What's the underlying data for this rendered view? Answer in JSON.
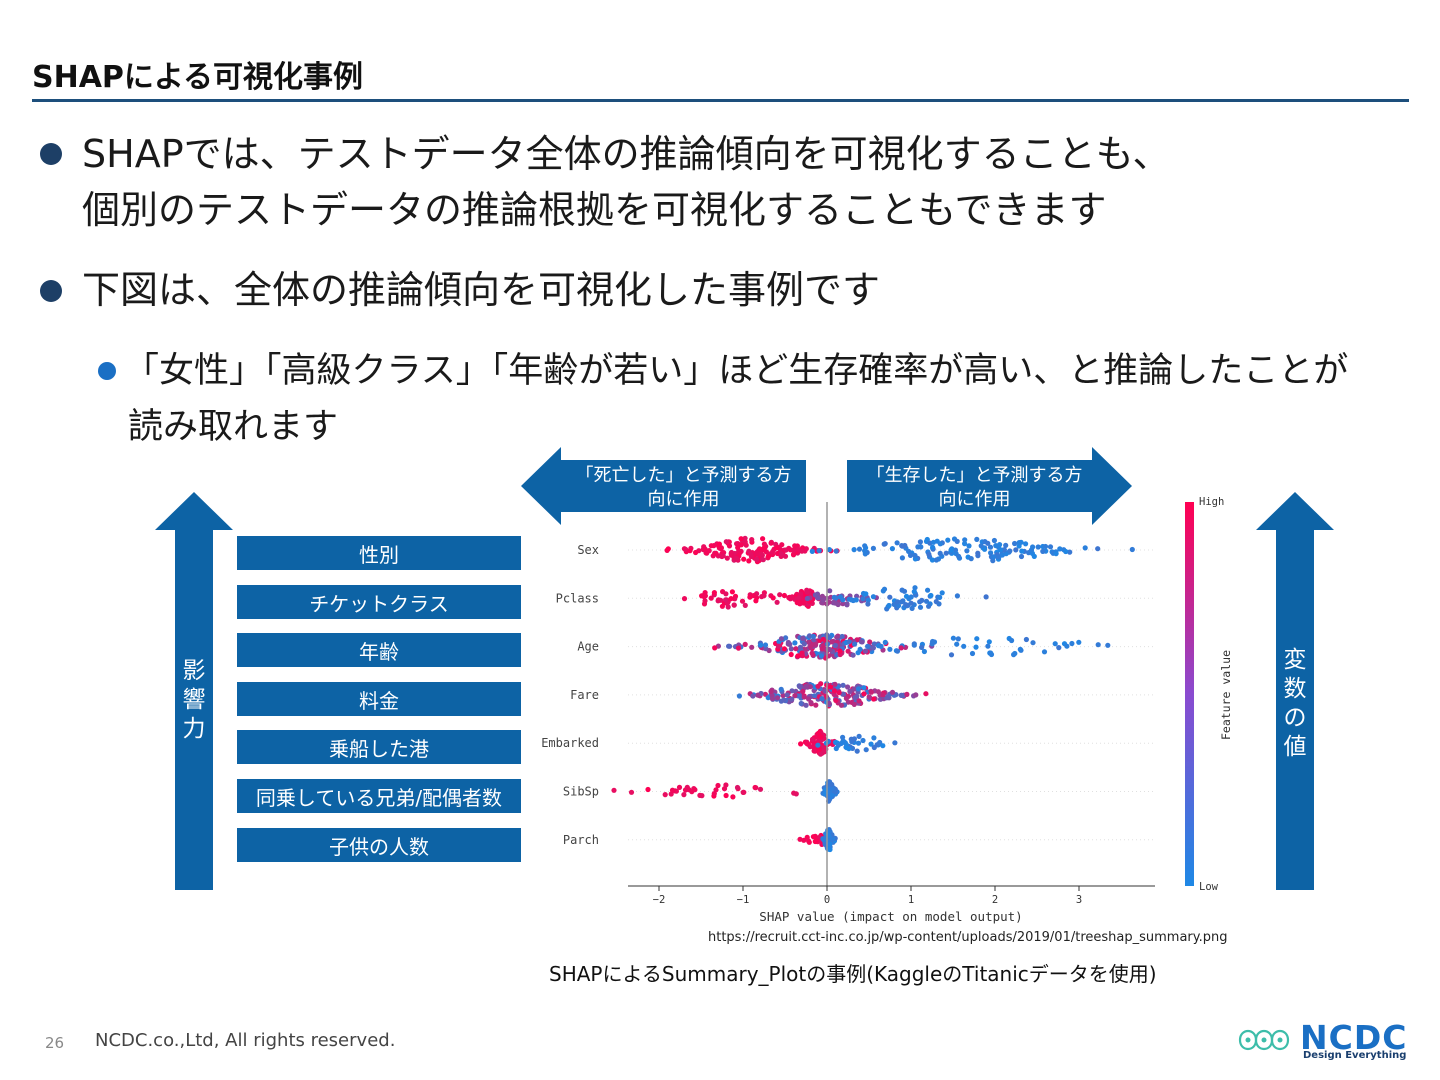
{
  "title": "SHAPによる可視化事例",
  "bullets": [
    {
      "lines": [
        "SHAPでは、テストデータ全体の推論傾向を可視化することも、",
        "個別のテストデータの推論根拠を可視化することもできます"
      ]
    },
    {
      "lines": [
        "下図は、全体の推論傾向を可視化した事例です"
      ]
    }
  ],
  "sub_bullet": {
    "lines": [
      "「女性」「高級クラス」「年齢が若い」ほど生存確率が高い、と推論したことが",
      "読み取れます"
    ]
  },
  "diagram": {
    "left_arrow_label_chars": [
      "影",
      "響",
      "力"
    ],
    "right_arrow_label_chars": [
      "変",
      "数",
      "の",
      "値"
    ],
    "direction_left_lines": [
      "「死亡した」と予測する方",
      "向に作用"
    ],
    "direction_right_lines": [
      "「生存した」と予測する方",
      "向に作用"
    ],
    "feature_labels_ja": [
      "性別",
      "チケットクラス",
      "年齢",
      "料金",
      "乗船した港",
      "同乗している兄弟/配偶者数",
      "子供の人数"
    ]
  },
  "colors": {
    "high": "#ff0052",
    "low": "#1e88e5",
    "box": "#0d63a5",
    "rule": "#1d4f7c"
  },
  "chart_data": {
    "type": "scatter",
    "subtype": "shap-beeswarm",
    "features": [
      "Sex",
      "Pclass",
      "Age",
      "Fare",
      "Embarked",
      "SibSp",
      "Parch"
    ],
    "x_ticks": [
      "−2",
      "−1",
      "0",
      "1",
      "2",
      "3"
    ],
    "xlim": [
      -2.3,
      3.9
    ],
    "xlabel": "SHAP value (impact on model output)",
    "colorbar": {
      "label": "Feature value",
      "high": "High",
      "low": "Low"
    },
    "distributions": [
      {
        "feature": "Sex",
        "clusters": [
          {
            "center": -0.9,
            "spread": 0.35,
            "count": 150,
            "color": "high"
          },
          {
            "center": 1.6,
            "spread": 0.75,
            "count": 130,
            "color": "low"
          }
        ]
      },
      {
        "feature": "Pclass",
        "clusters": [
          {
            "center": -1.1,
            "spread": 0.35,
            "count": 50,
            "color": "high"
          },
          {
            "center": -0.25,
            "spread": 0.08,
            "count": 45,
            "color": "high"
          },
          {
            "center": 0.1,
            "spread": 0.2,
            "count": 40,
            "color": "mid"
          },
          {
            "center": 0.9,
            "spread": 0.35,
            "count": 60,
            "color": "low"
          }
        ]
      },
      {
        "feature": "Age",
        "clusters": [
          {
            "center": -0.1,
            "spread": 0.45,
            "count": 200,
            "color": "mixed"
          },
          {
            "center": 1.8,
            "spread": 0.9,
            "count": 45,
            "color": "low"
          }
        ]
      },
      {
        "feature": "Fare",
        "clusters": [
          {
            "center": 0.0,
            "spread": 0.45,
            "count": 200,
            "color": "mixed"
          }
        ]
      },
      {
        "feature": "Embarked",
        "clusters": [
          {
            "center": -0.08,
            "spread": 0.08,
            "count": 70,
            "color": "high"
          },
          {
            "center": 0.35,
            "spread": 0.25,
            "count": 40,
            "color": "low"
          }
        ]
      },
      {
        "feature": "SibSp",
        "clusters": [
          {
            "center": -1.2,
            "spread": 0.55,
            "count": 35,
            "color": "high"
          },
          {
            "center": 0.03,
            "spread": 0.04,
            "count": 50,
            "color": "low"
          }
        ]
      },
      {
        "feature": "Parch",
        "clusters": [
          {
            "center": -0.1,
            "spread": 0.12,
            "count": 25,
            "color": "high"
          },
          {
            "center": 0.02,
            "spread": 0.03,
            "count": 55,
            "color": "low"
          }
        ]
      }
    ]
  },
  "source_url": "https://recruit.cct-inc.co.jp/wp-content/uploads/2019/01/treeshap_summary.png",
  "caption": "SHAPによるSummary_Plotの事例(KaggleのTitanicデータを使用)",
  "footer": {
    "page": "26",
    "copyright": "NCDC.co.,Ltd, All rights reserved.",
    "logo": "NCDC",
    "logo_sub": "Design Everything"
  }
}
